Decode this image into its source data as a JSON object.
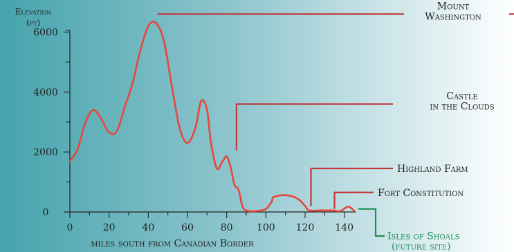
{
  "chart_data": {
    "type": "line",
    "title": "",
    "xlabel": "miles south from Canadian Border",
    "ylabel": "Elevation",
    "ylabel_unit": "(ft)",
    "xlim": [
      0,
      150
    ],
    "ylim": [
      0,
      7000
    ],
    "x_ticks": [
      0,
      20,
      40,
      60,
      80,
      100,
      120,
      140
    ],
    "y_ticks": [
      0,
      2000,
      4000,
      6000
    ],
    "grid": false,
    "series": [
      {
        "line_color": "#e8453c",
        "points": [
          [
            0,
            1700
          ],
          [
            4,
            2100
          ],
          [
            8,
            3000
          ],
          [
            12,
            3400
          ],
          [
            16,
            3100
          ],
          [
            20,
            2650
          ],
          [
            24,
            2700
          ],
          [
            28,
            3500
          ],
          [
            32,
            4300
          ],
          [
            36,
            5400
          ],
          [
            40,
            6200
          ],
          [
            44,
            6300
          ],
          [
            48,
            5700
          ],
          [
            52,
            4200
          ],
          [
            56,
            2800
          ],
          [
            60,
            2300
          ],
          [
            64,
            2800
          ],
          [
            67,
            3700
          ],
          [
            70,
            3400
          ],
          [
            72,
            2300
          ],
          [
            75,
            1450
          ],
          [
            78,
            1700
          ],
          [
            80,
            1850
          ],
          [
            82,
            1500
          ],
          [
            84,
            900
          ],
          [
            86,
            750
          ],
          [
            88,
            200
          ],
          [
            90,
            50
          ],
          [
            95,
            30
          ],
          [
            100,
            100
          ],
          [
            103,
            350
          ],
          [
            104,
            500
          ],
          [
            110,
            560
          ],
          [
            116,
            450
          ],
          [
            120,
            200
          ],
          [
            122,
            50
          ],
          [
            128,
            50
          ],
          [
            134,
            50
          ],
          [
            138,
            30
          ],
          [
            142,
            180
          ],
          [
            145,
            40
          ]
        ]
      }
    ],
    "annotations": [
      {
        "label_lines": [
          "Mount",
          "Washington"
        ],
        "leader_color": "#c0393b",
        "anchor": [
          44,
          6600
        ],
        "label_y": 6600
      },
      {
        "label_lines": [
          "Castle",
          "in the Clouds"
        ],
        "leader_color": "#c0393b",
        "anchor": [
          85,
          2050
        ],
        "label_y": 3600
      },
      {
        "label_lines": [
          "Highland Farm"
        ],
        "leader_color": "#c0393b",
        "anchor": [
          123,
          200
        ],
        "label_y": 1450
      },
      {
        "label_lines": [
          "Fort Constitution"
        ],
        "leader_color": "#c0393b",
        "anchor": [
          135,
          100
        ],
        "label_y": 650
      },
      {
        "label_lines": [
          "Isles of Shoals",
          "(future site)"
        ],
        "leader_color": "#1f8e57",
        "anchor": [
          145,
          100
        ],
        "label_y": -800
      }
    ]
  }
}
